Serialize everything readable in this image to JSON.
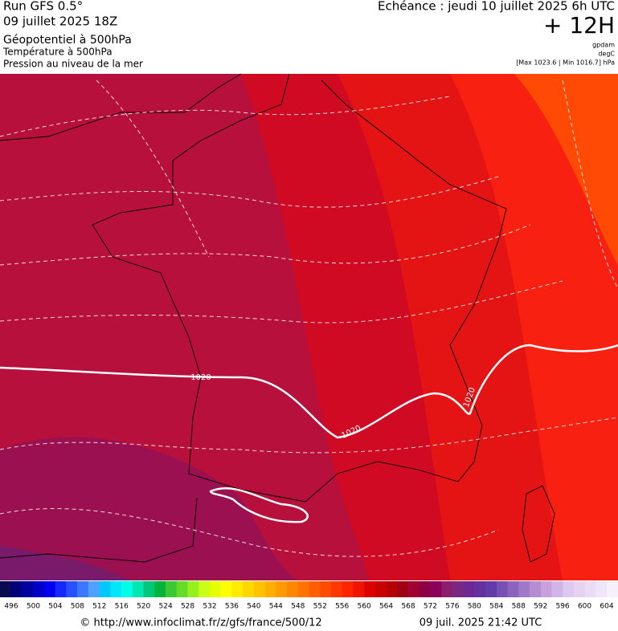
{
  "header": {
    "run": "Run GFS 0.5°",
    "date": "09 juillet 2025 18Z",
    "fields": [
      "Géopotentiel à 500hPa",
      "Température à 500hPa",
      "Pression au niveau de la mer"
    ],
    "echeance": "Echéance : jeudi 10 juillet 2025 6h UTC",
    "lead": "+ 12H",
    "units": [
      "gpdam",
      "degC"
    ],
    "range": "[Max 1023.6 | Min 1016.7] hPa"
  },
  "map": {
    "isobar_labels": [
      "1020",
      "1020",
      "1020"
    ]
  },
  "colorbar": {
    "labels": [
      496,
      500,
      504,
      508,
      512,
      516,
      520,
      524,
      528,
      532,
      536,
      540,
      544,
      548,
      552,
      556,
      560,
      564,
      568,
      572,
      576,
      580,
      584,
      588,
      592,
      596,
      600,
      604
    ],
    "colors": [
      "#0a0a50",
      "#00007a",
      "#0000a0",
      "#0000c8",
      "#0000f0",
      "#1428ff",
      "#2850ff",
      "#3c78ff",
      "#50a0ff",
      "#00c8ff",
      "#00e6ff",
      "#00ffe6",
      "#00e6b4",
      "#00c878",
      "#00b43c",
      "#3cc832",
      "#64dc28",
      "#96f01e",
      "#c8ff14",
      "#e6ff00",
      "#ffff00",
      "#ffeb00",
      "#ffd700",
      "#ffc300",
      "#ffaf00",
      "#ff9b00",
      "#ff8700",
      "#ff7300",
      "#ff5f00",
      "#ff4b00",
      "#ff3700",
      "#ff2300",
      "#f01400",
      "#dc0000",
      "#c80000",
      "#b40000",
      "#a00014",
      "#a00032",
      "#8c0046",
      "#8c005a",
      "#8c1e6e",
      "#782882",
      "#6e2896",
      "#6432a0",
      "#643caa",
      "#7850b4",
      "#8c64be",
      "#a078c8",
      "#b48cd2",
      "#c8a0dc",
      "#d2b4e6",
      "#dcc8f0",
      "#e6d2f0",
      "#ebdcf5",
      "#f0e6fa",
      "#f5f0fa"
    ]
  },
  "footer": {
    "url": "© http://www.infoclimat.fr/z/gfs/france/500/12",
    "timestamp": "09 juil. 2025 21:42 UTC"
  }
}
